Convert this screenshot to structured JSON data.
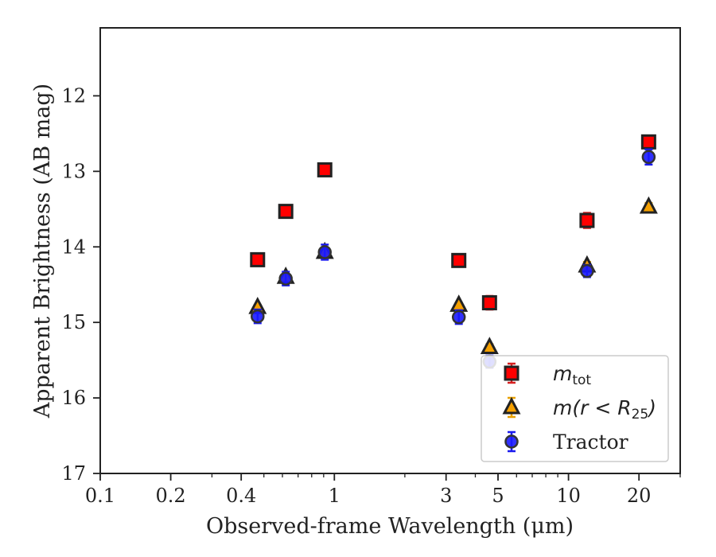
{
  "chart_data": {
    "type": "scatter",
    "title": "",
    "xlabel": "Observed-frame Wavelength (μm)",
    "ylabel": "Apparent Brightness (AB mag)",
    "xscale": "log",
    "xlim": [
      0.1,
      30
    ],
    "ylim": [
      17,
      11.1
    ],
    "y_inverted": true,
    "grid": false,
    "legend_position": "bottom-right",
    "xticks": [
      {
        "value": 0.1,
        "label": "0.1"
      },
      {
        "value": 0.2,
        "label": "0.2"
      },
      {
        "value": 0.4,
        "label": "0.4"
      },
      {
        "value": 1,
        "label": "1"
      },
      {
        "value": 3,
        "label": "3"
      },
      {
        "value": 5,
        "label": "5"
      },
      {
        "value": 10,
        "label": "10"
      },
      {
        "value": 20,
        "label": "20"
      }
    ],
    "yticks": [
      {
        "value": 12,
        "label": "12"
      },
      {
        "value": 13,
        "label": "13"
      },
      {
        "value": 14,
        "label": "14"
      },
      {
        "value": 15,
        "label": "15"
      },
      {
        "value": 16,
        "label": "16"
      },
      {
        "value": 17,
        "label": "17"
      }
    ],
    "series": [
      {
        "key": "m_tot",
        "marker": "square",
        "face_color": "#ff0000",
        "edge_color": "#222222",
        "errorbar_color": "#d62020",
        "points": [
          {
            "x": 0.47,
            "y": 14.17,
            "err": 0.07
          },
          {
            "x": 0.62,
            "y": 13.53,
            "err": 0.07
          },
          {
            "x": 0.91,
            "y": 12.98,
            "err": 0.07
          },
          {
            "x": 3.4,
            "y": 14.18,
            "err": 0.08
          },
          {
            "x": 4.6,
            "y": 14.74,
            "err": 0.09
          },
          {
            "x": 12.0,
            "y": 13.65,
            "err": 0.1
          },
          {
            "x": 22.0,
            "y": 12.61,
            "err": 0.07
          }
        ]
      },
      {
        "key": "m_r25",
        "marker": "triangle",
        "face_color": "#f5a000",
        "edge_color": "#222222",
        "errorbar_color": "#e8a000",
        "points": [
          {
            "x": 0.47,
            "y": 14.8,
            "err": 0.03
          },
          {
            "x": 0.62,
            "y": 14.4,
            "err": 0.03
          },
          {
            "x": 0.91,
            "y": 14.07,
            "err": 0.03
          },
          {
            "x": 3.4,
            "y": 14.77,
            "err": 0.03
          },
          {
            "x": 4.6,
            "y": 15.33,
            "err": 0.04
          },
          {
            "x": 12.0,
            "y": 14.25,
            "err": 0.05
          },
          {
            "x": 22.0,
            "y": 13.47,
            "err": 0.05
          }
        ]
      },
      {
        "key": "tractor",
        "marker": "circle",
        "face_color": "#1a1aff",
        "edge_color": "#333333",
        "errorbar_color": "#1a1aee",
        "points": [
          {
            "x": 0.47,
            "y": 14.92,
            "err": 0.09
          },
          {
            "x": 0.62,
            "y": 14.42,
            "err": 0.09
          },
          {
            "x": 0.91,
            "y": 14.07,
            "err": 0.1
          },
          {
            "x": 3.4,
            "y": 14.93,
            "err": 0.09
          },
          {
            "x": 4.6,
            "y": 15.52,
            "err": 0.08
          },
          {
            "x": 12.0,
            "y": 14.32,
            "err": 0.08
          },
          {
            "x": 22.0,
            "y": 12.81,
            "err": 0.1
          }
        ]
      }
    ],
    "legend": {
      "entries": [
        {
          "series": "m_tot",
          "base": "m",
          "sub": "tot"
        },
        {
          "series": "m_r25",
          "base": "m(r < R",
          "sub": "25",
          "tail": ")"
        },
        {
          "series": "tractor",
          "label": "Tractor"
        }
      ]
    }
  }
}
